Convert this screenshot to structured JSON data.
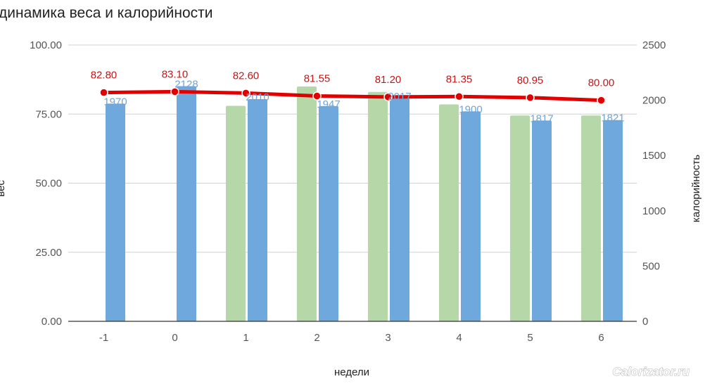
{
  "chart_data": {
    "type": "bar",
    "title": "динамика веса и калорийности",
    "xlabel": "недели",
    "ylabel_left": "вес",
    "ylabel_right": "калорийность",
    "categories": [
      "-1",
      "0",
      "1",
      "2",
      "3",
      "4",
      "5",
      "6"
    ],
    "left_ticks": [
      "0.00",
      "25.00",
      "50.00",
      "75.00",
      "100.00"
    ],
    "right_ticks": [
      "0",
      "500",
      "1000",
      "1500",
      "2000",
      "2500"
    ],
    "ylim_left": [
      0,
      100
    ],
    "ylim_right": [
      0,
      2500
    ],
    "grid": true,
    "series": [
      {
        "kind": "bar",
        "axis": "left",
        "color": "#b6d7a8",
        "values": [
          null,
          null,
          78,
          85,
          83,
          78.5,
          74.5,
          74.5
        ]
      },
      {
        "kind": "bar",
        "axis": "right",
        "color": "#6fa8dc",
        "values": [
          1970,
          2128,
          2010,
          1947,
          2017,
          1900,
          1817,
          1821
        ],
        "labels": [
          "1970",
          "2128",
          "2010",
          "1947",
          "2017",
          "1900",
          "1817",
          "1821"
        ]
      },
      {
        "kind": "line",
        "axis": "left",
        "color": "#e00000",
        "values": [
          82.8,
          83.1,
          82.6,
          81.55,
          81.2,
          81.35,
          80.95,
          80.0
        ],
        "labels": [
          "82.80",
          "83.10",
          "82.60",
          "81.55",
          "81.20",
          "81.35",
          "80.95",
          "80.00"
        ]
      }
    ]
  },
  "watermark": "Calorizator.ru"
}
